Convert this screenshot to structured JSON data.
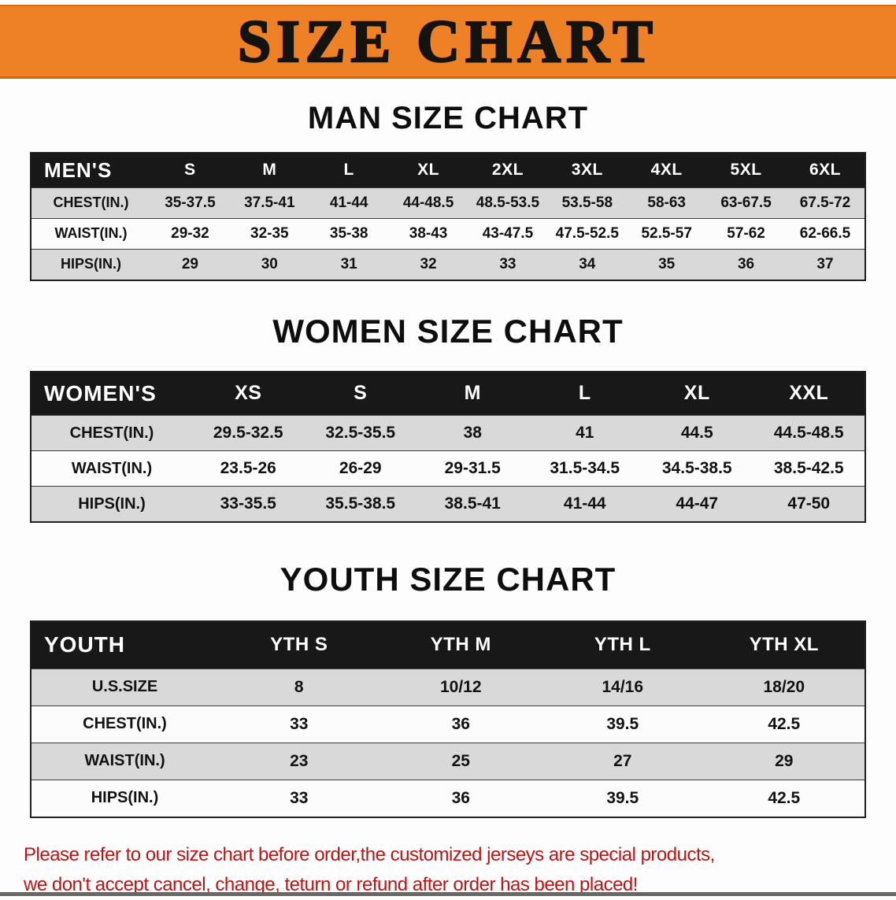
{
  "banner": {
    "title": "SIZE CHART"
  },
  "sections": [
    {
      "heading": "MAN SIZE CHART",
      "table": {
        "header": [
          "MEN'S",
          "S",
          "M",
          "L",
          "XL",
          "2XL",
          "3XL",
          "4XL",
          "5XL",
          "6XL"
        ],
        "rows": [
          [
            "CHEST(IN.)",
            "35-37.5",
            "37.5-41",
            "41-44",
            "44-48.5",
            "48.5-53.5",
            "53.5-58",
            "58-63",
            "63-67.5",
            "67.5-72"
          ],
          [
            "WAIST(IN.)",
            "29-32",
            "32-35",
            "35-38",
            "38-43",
            "43-47.5",
            "47.5-52.5",
            "52.5-57",
            "57-62",
            "62-66.5"
          ],
          [
            "HIPS(IN.)",
            "29",
            "30",
            "31",
            "32",
            "33",
            "34",
            "35",
            "36",
            "37"
          ]
        ]
      }
    },
    {
      "heading": "WOMEN SIZE CHART",
      "table": {
        "header": [
          "WOMEN'S",
          "XS",
          "S",
          "M",
          "L",
          "XL",
          "XXL"
        ],
        "rows": [
          [
            "CHEST(IN.)",
            "29.5-32.5",
            "32.5-35.5",
            "38",
            "41",
            "44.5",
            "44.5-48.5"
          ],
          [
            "WAIST(IN.)",
            "23.5-26",
            "26-29",
            "29-31.5",
            "31.5-34.5",
            "34.5-38.5",
            "38.5-42.5"
          ],
          [
            "HIPS(IN.)",
            "33-35.5",
            "35.5-38.5",
            "38.5-41",
            "41-44",
            "44-47",
            "47-50"
          ]
        ]
      }
    },
    {
      "heading": "YOUTH SIZE CHART",
      "table": {
        "header": [
          "YOUTH",
          "YTH S",
          "YTH M",
          "YTH L",
          "YTH XL"
        ],
        "rows": [
          [
            "U.S.SIZE",
            "8",
            "10/12",
            "14/16",
            "18/20"
          ],
          [
            "CHEST(IN.)",
            "33",
            "36",
            "39.5",
            "42.5"
          ],
          [
            "WAIST(IN.)",
            "23",
            "25",
            "27",
            "29"
          ],
          [
            "HIPS(IN.)",
            "33",
            "36",
            "39.5",
            "42.5"
          ]
        ]
      }
    }
  ],
  "footer": {
    "line1": "Please refer to our size chart before order,the customized jerseys are special products,",
    "line2": "we don't accept cancel, change, teturn or refund after order has been placed!"
  },
  "colors": {
    "banner_orange": "#ee8125",
    "table_header_black": "#181818",
    "row_gray": "#d9d9d9",
    "notice_red": "#bf1212"
  }
}
